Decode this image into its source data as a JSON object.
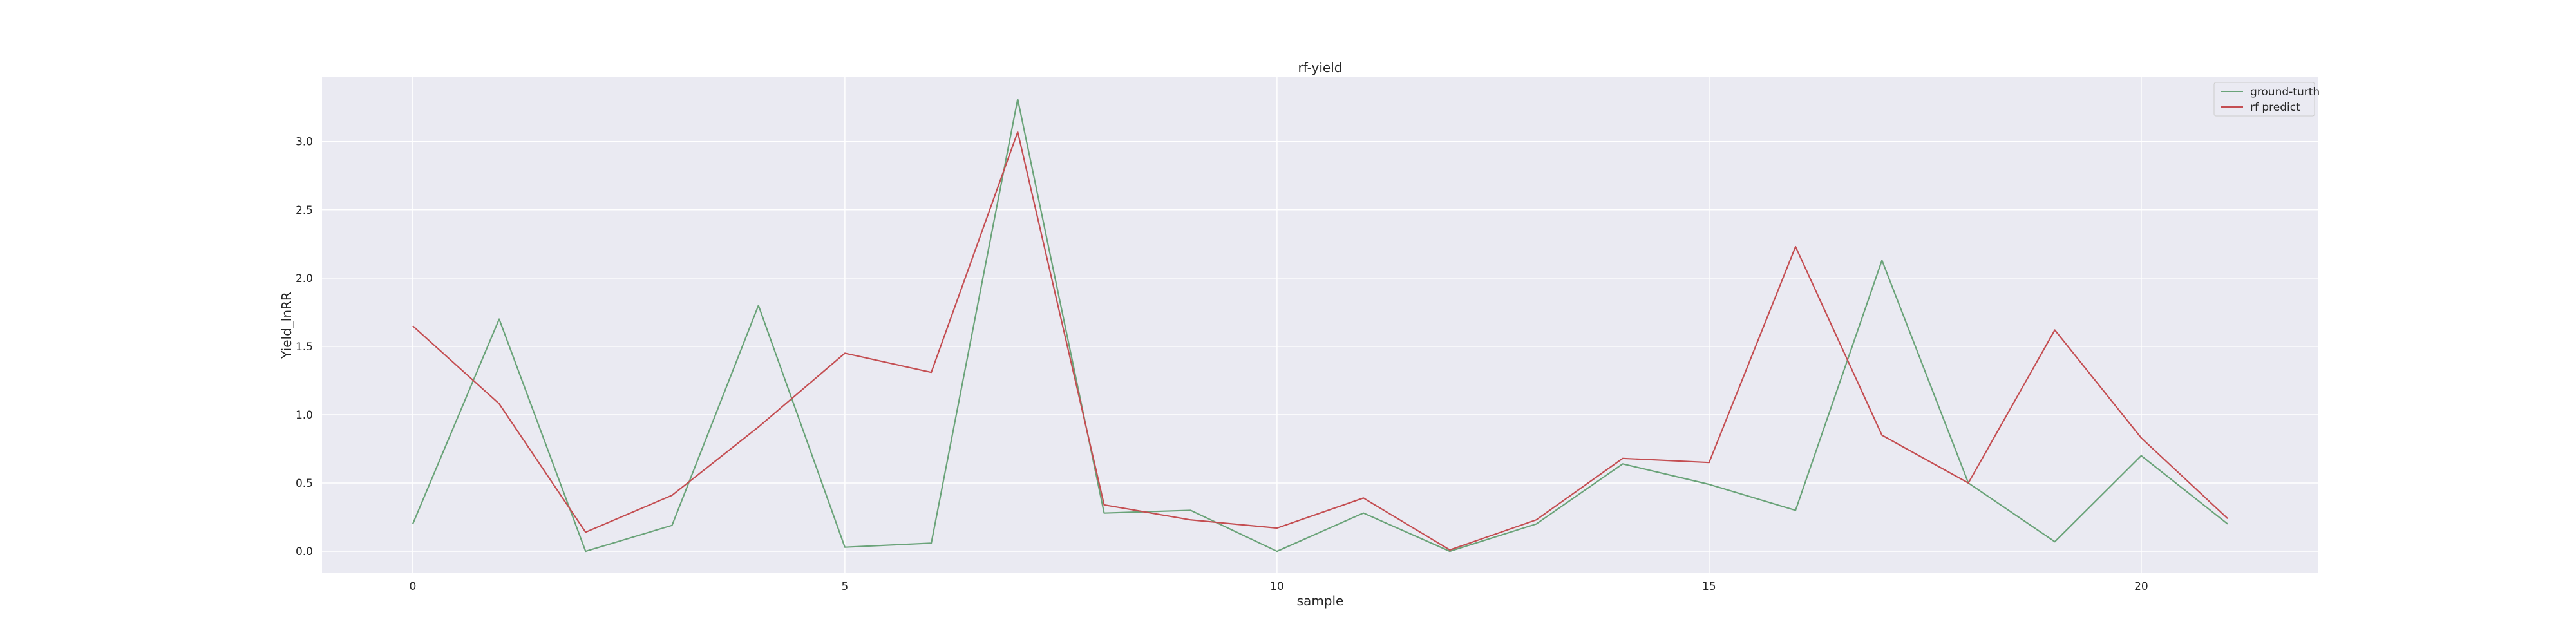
{
  "chart_data": {
    "type": "line",
    "title": "rf-yield",
    "xlabel": "sample",
    "ylabel": "Yield_lnRR",
    "xlim": [
      -1.05,
      22.05
    ],
    "ylim": [
      -0.16,
      3.47
    ],
    "xticks": [
      0,
      5,
      10,
      15,
      20
    ],
    "yticks": [
      0.0,
      0.5,
      1.0,
      1.5,
      2.0,
      2.5,
      3.0
    ],
    "xtick_labels": [
      "0",
      "5",
      "10",
      "15",
      "20"
    ],
    "ytick_labels": [
      "0.0",
      "0.5",
      "1.0",
      "1.5",
      "2.0",
      "2.5",
      "3.0"
    ],
    "grid": true,
    "legend_position": "top-right",
    "x": [
      0,
      1,
      2,
      3,
      4,
      5,
      6,
      7,
      8,
      9,
      10,
      11,
      12,
      13,
      14,
      15,
      16,
      17,
      18,
      19,
      20,
      21
    ],
    "series": [
      {
        "name": "ground-turth",
        "color": "#6aa379",
        "values": [
          0.2,
          1.7,
          0.0,
          0.19,
          1.8,
          0.03,
          0.06,
          3.31,
          0.28,
          0.3,
          0.0,
          0.28,
          0.0,
          0.2,
          0.64,
          0.49,
          0.3,
          2.13,
          0.5,
          0.07,
          0.7,
          0.2
        ]
      },
      {
        "name": "rf predict",
        "color": "#c44e52",
        "values": [
          1.65,
          1.08,
          0.14,
          0.41,
          0.91,
          1.45,
          1.31,
          3.07,
          0.34,
          0.23,
          0.17,
          0.39,
          0.01,
          0.23,
          0.68,
          0.65,
          2.23,
          0.85,
          0.5,
          1.62,
          0.83,
          0.24
        ]
      }
    ]
  }
}
